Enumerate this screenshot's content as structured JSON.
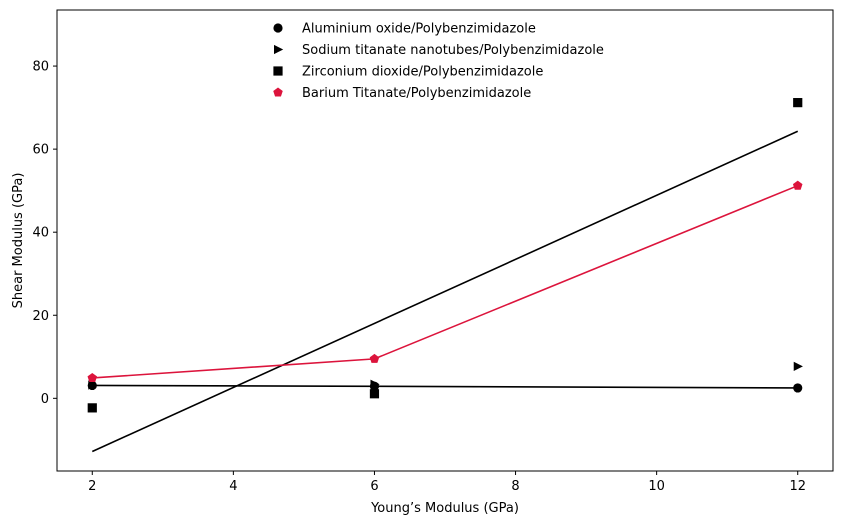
{
  "chart_data": {
    "type": "scatter",
    "title": "",
    "xlabel": "Young’s Modulus (GPa)",
    "ylabel": "Shear Modulus (GPa)",
    "xlim": [
      1.5,
      12.5
    ],
    "ylim": [
      -17.5,
      93.5
    ],
    "xticks": [
      2,
      4,
      6,
      8,
      10,
      12
    ],
    "yticks": [
      0,
      20,
      40,
      60,
      80
    ],
    "grid": false,
    "legend_position": "top-center",
    "series": [
      {
        "name": "Aluminium oxide/Polybenzimidazole",
        "marker": "circle",
        "color": "#000000",
        "points": [
          [
            2,
            3.1
          ],
          [
            6,
            2.9
          ],
          [
            12,
            2.5
          ]
        ]
      },
      {
        "name": "Sodium titanate nanotubes/Polybenzimidazole",
        "marker": "triangle-right",
        "color": "#000000",
        "points": [
          [
            2,
            3.2
          ],
          [
            6,
            3.4
          ],
          [
            12,
            7.7
          ]
        ]
      },
      {
        "name": "Zirconium dioxide/Polybenzimidazole",
        "marker": "square",
        "color": "#000000",
        "points": [
          [
            2,
            -2.3
          ],
          [
            6,
            1.1
          ],
          [
            12,
            71.2
          ]
        ]
      },
      {
        "name": "Barium Titanate/Polybenzimidazole",
        "marker": "pentagon",
        "color": "#dc143c",
        "points": [
          [
            2,
            4.9
          ],
          [
            6,
            9.5
          ],
          [
            12,
            51.2
          ]
        ]
      }
    ],
    "lines": [
      {
        "color": "#000000",
        "points": [
          [
            2,
            3.1
          ],
          [
            6,
            2.9
          ],
          [
            12,
            2.5
          ]
        ]
      },
      {
        "color": "#000000",
        "points": [
          [
            2,
            -12.8
          ],
          [
            12,
            64.3
          ]
        ]
      },
      {
        "color": "#dc143c",
        "points": [
          [
            2,
            4.9
          ],
          [
            6,
            9.5
          ],
          [
            12,
            51.2
          ]
        ]
      }
    ]
  }
}
